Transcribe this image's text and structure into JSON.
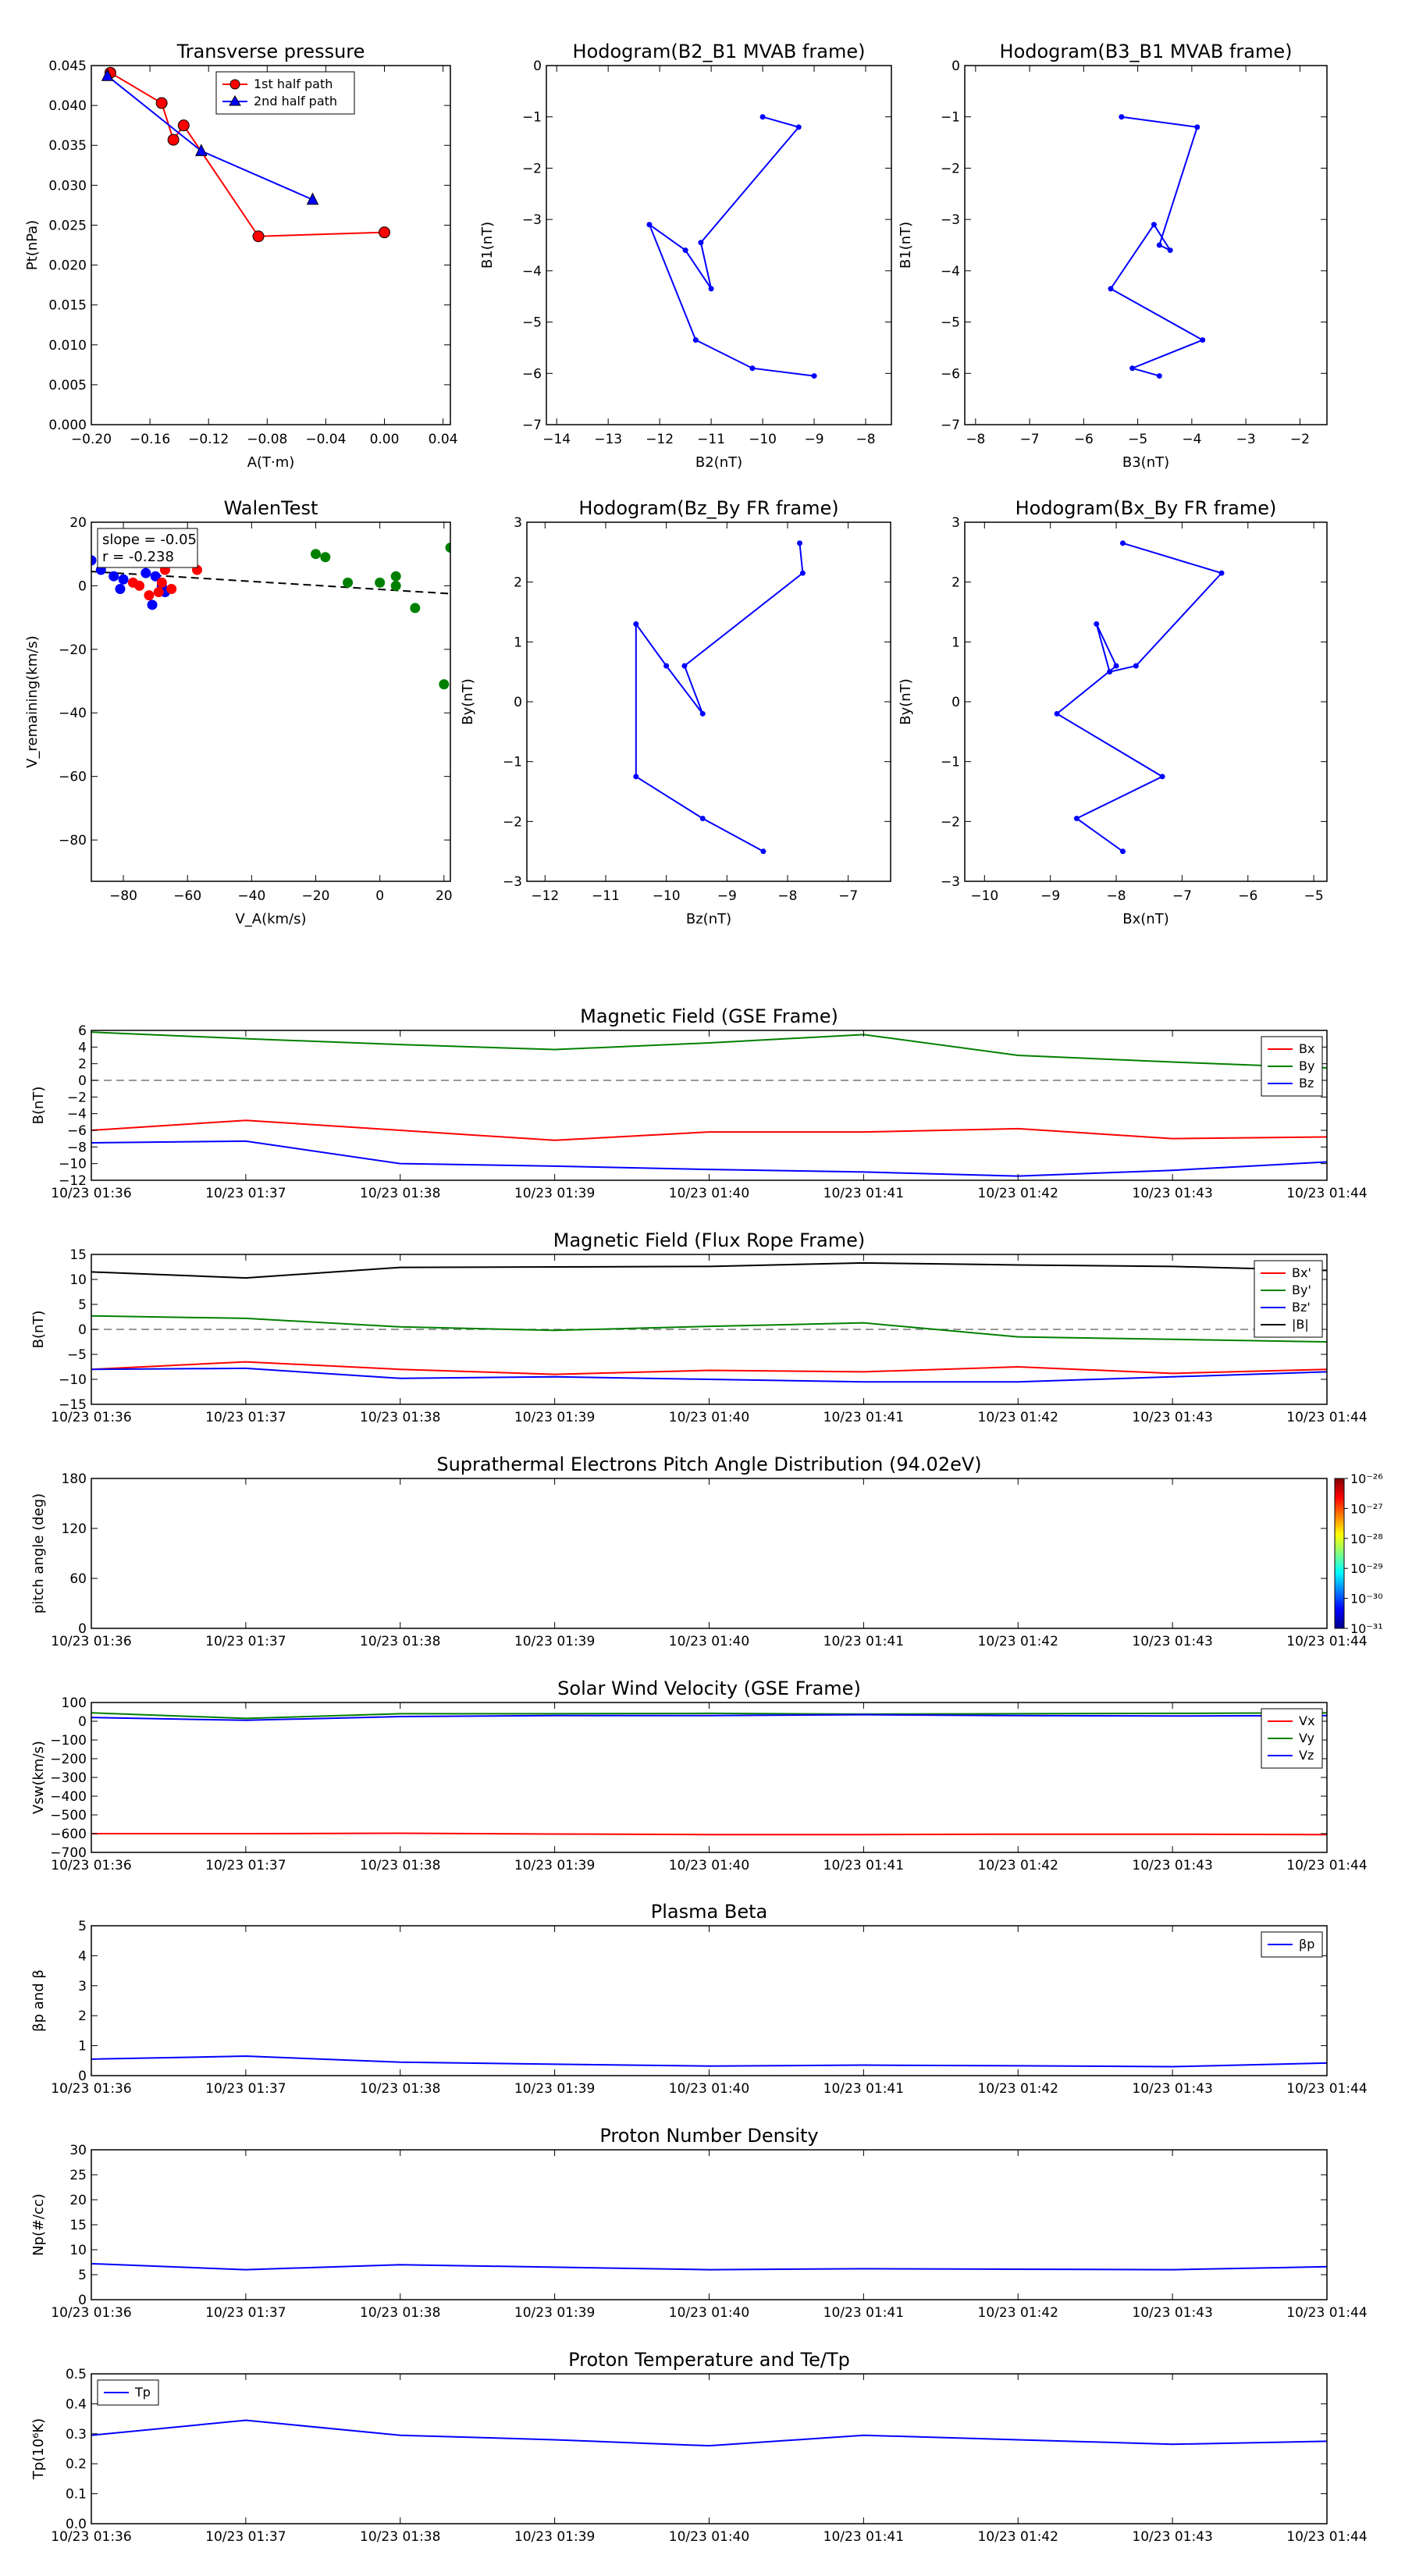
{
  "time_axis": {
    "tick_labels": [
      "10/23 01:36",
      "10/23 01:37",
      "10/23 01:38",
      "10/23 01:39",
      "10/23 01:40",
      "10/23 01:41",
      "10/23 01:42",
      "10/23 01:43",
      "10/23 01:44"
    ]
  },
  "chart_data": [
    {
      "id": "transverse-pressure",
      "type": "line",
      "title": "Transverse pressure",
      "xlabel": "A(T·m)",
      "ylabel": "Pt(nPa)",
      "xlim": [
        -0.2,
        0.045
      ],
      "ylim": [
        0,
        0.045
      ],
      "xticks": [
        -0.2,
        -0.16,
        -0.12,
        -0.08,
        -0.04,
        0.0,
        0.04
      ],
      "xtick_labels": [
        "−0.20",
        "−0.16",
        "−0.12",
        "−0.08",
        "−0.04",
        "0.00",
        "0.04"
      ],
      "yticks": [
        0,
        0.005,
        0.01,
        0.015,
        0.02,
        0.025,
        0.03,
        0.035,
        0.04,
        0.045
      ],
      "ytick_labels": [
        "0.000",
        "0.005",
        "0.010",
        "0.015",
        "0.020",
        "0.025",
        "0.030",
        "0.035",
        "0.040",
        "0.045"
      ],
      "legend": {
        "position": "top-inside",
        "entries": [
          "1st half path",
          "2nd half path"
        ]
      },
      "series": [
        {
          "name": "1st half path",
          "color": "#ff0000",
          "marker": "circle",
          "points": [
            [
              -0.187,
              0.0441
            ],
            [
              -0.152,
              0.0403
            ],
            [
              -0.144,
              0.0357
            ],
            [
              -0.137,
              0.0375
            ],
            [
              -0.086,
              0.0236
            ],
            [
              0.0,
              0.0241
            ]
          ]
        },
        {
          "name": "2nd half path",
          "color": "#0000ff",
          "marker": "triangle",
          "points": [
            [
              -0.189,
              0.0437
            ],
            [
              -0.125,
              0.0343
            ],
            [
              -0.049,
              0.0282
            ]
          ]
        }
      ]
    },
    {
      "id": "hodogram-b2-b1",
      "type": "line",
      "title": "Hodogram(B2_B1 MVAB frame)",
      "xlabel": "B2(nT)",
      "ylabel": "B1(nT)",
      "xlim": [
        -14.2,
        -7.5
      ],
      "ylim": [
        -7,
        0
      ],
      "xticks": [
        -14,
        -13,
        -12,
        -11,
        -10,
        -9,
        -8
      ],
      "xtick_labels": [
        "−14",
        "−13",
        "−12",
        "−11",
        "−10",
        "−9",
        "−8"
      ],
      "yticks": [
        -7,
        -6,
        -5,
        -4,
        -3,
        -2,
        -1,
        0
      ],
      "ytick_labels": [
        "−7",
        "−6",
        "−5",
        "−4",
        "−3",
        "−2",
        "−1",
        "0"
      ],
      "series": [
        {
          "color": "#0000ff",
          "marker": "dot",
          "points": [
            [
              -10.0,
              -1.0
            ],
            [
              -9.3,
              -1.2
            ],
            [
              -11.2,
              -3.45
            ],
            [
              -11.0,
              -4.35
            ],
            [
              -11.5,
              -3.6
            ],
            [
              -12.2,
              -3.1
            ],
            [
              -11.3,
              -5.35
            ],
            [
              -10.2,
              -5.9
            ],
            [
              -9.0,
              -6.05
            ]
          ]
        }
      ]
    },
    {
      "id": "hodogram-b3-b1",
      "type": "line",
      "title": "Hodogram(B3_B1 MVAB frame)",
      "xlabel": "B3(nT)",
      "ylabel": "B1(nT)",
      "xlim": [
        -8.2,
        -1.5
      ],
      "ylim": [
        -7,
        0
      ],
      "xticks": [
        -8,
        -7,
        -6,
        -5,
        -4,
        -3,
        -2
      ],
      "xtick_labels": [
        "−8",
        "−7",
        "−6",
        "−5",
        "−4",
        "−3",
        "−2"
      ],
      "yticks": [
        -7,
        -6,
        -5,
        -4,
        -3,
        -2,
        -1,
        0
      ],
      "ytick_labels": [
        "−7",
        "−6",
        "−5",
        "−4",
        "−3",
        "−2",
        "−1",
        "0"
      ],
      "series": [
        {
          "color": "#0000ff",
          "marker": "dot",
          "points": [
            [
              -5.3,
              -1.0
            ],
            [
              -3.9,
              -1.2
            ],
            [
              -4.6,
              -3.5
            ],
            [
              -4.4,
              -3.6
            ],
            [
              -4.7,
              -3.1
            ],
            [
              -5.5,
              -4.35
            ],
            [
              -3.8,
              -5.35
            ],
            [
              -5.1,
              -5.9
            ],
            [
              -4.6,
              -6.05
            ]
          ]
        }
      ]
    },
    {
      "id": "walen-test",
      "type": "scatter",
      "title": "WalenTest",
      "xlabel": "V_A(km/s)",
      "ylabel": "V_remaining(km/s)",
      "xlim": [
        -90,
        22
      ],
      "ylim": [
        -93,
        20
      ],
      "xticks": [
        -80,
        -60,
        -40,
        -20,
        0,
        20
      ],
      "xtick_labels": [
        "−80",
        "−60",
        "−40",
        "−20",
        "0",
        "20"
      ],
      "yticks": [
        -80,
        -60,
        -40,
        -20,
        0,
        20
      ],
      "ytick_labels": [
        "−80",
        "−60",
        "−40",
        "−20",
        "0",
        "20"
      ],
      "annotation": {
        "line1": "slope = -0.05",
        "line2": "r = -0.238"
      },
      "fit_line": {
        "points": [
          [
            -90,
            4.5
          ],
          [
            22,
            -2.5
          ]
        ],
        "style": "dashed"
      },
      "series": [
        {
          "color": "#0000ff",
          "points": [
            [
              -90,
              8
            ],
            [
              -87,
              5
            ],
            [
              -83,
              3
            ],
            [
              -80,
              2
            ],
            [
              -81,
              -1
            ],
            [
              -73,
              4
            ],
            [
              -71,
              -6
            ],
            [
              -68,
              0
            ],
            [
              -67,
              -2
            ],
            [
              -70,
              3
            ]
          ]
        },
        {
          "color": "#ff0000",
          "points": [
            [
              -77,
              1
            ],
            [
              -75,
              0
            ],
            [
              -72,
              -3
            ],
            [
              -69,
              -2
            ],
            [
              -67,
              5
            ],
            [
              -65,
              -1
            ],
            [
              -57,
              5
            ],
            [
              -68,
              1
            ]
          ]
        },
        {
          "color": "#008000",
          "points": [
            [
              -20,
              10
            ],
            [
              -17,
              9
            ],
            [
              -10,
              1
            ],
            [
              0,
              1
            ],
            [
              5,
              3
            ],
            [
              5,
              0
            ],
            [
              11,
              -7
            ],
            [
              20,
              -31
            ],
            [
              22,
              12
            ]
          ]
        }
      ]
    },
    {
      "id": "hodogram-bz-by",
      "type": "line",
      "title": "Hodogram(Bz_By FR frame)",
      "xlabel": "Bz(nT)",
      "ylabel": "By(nT)",
      "xlim": [
        -12.3,
        -6.3
      ],
      "ylim": [
        -3,
        3
      ],
      "xticks": [
        -12,
        -11,
        -10,
        -9,
        -8,
        -7
      ],
      "xtick_labels": [
        "−12",
        "−11",
        "−10",
        "−9",
        "−8",
        "−7"
      ],
      "yticks": [
        -3,
        -2,
        -1,
        0,
        1,
        2,
        3
      ],
      "ytick_labels": [
        "−3",
        "−2",
        "−1",
        "0",
        "1",
        "2",
        "3"
      ],
      "series": [
        {
          "color": "#0000ff",
          "marker": "dot",
          "points": [
            [
              -7.8,
              2.65
            ],
            [
              -7.75,
              2.15
            ],
            [
              -9.7,
              0.6
            ],
            [
              -9.4,
              -0.2
            ],
            [
              -10.0,
              0.6
            ],
            [
              -10.5,
              1.3
            ],
            [
              -10.5,
              -1.25
            ],
            [
              -9.4,
              -1.95
            ],
            [
              -8.4,
              -2.5
            ]
          ]
        }
      ]
    },
    {
      "id": "hodogram-bx-by",
      "type": "line",
      "title": "Hodogram(Bx_By FR frame)",
      "xlabel": "Bx(nT)",
      "ylabel": "By(nT)",
      "xlim": [
        -10.3,
        -4.8
      ],
      "ylim": [
        -3,
        3
      ],
      "xticks": [
        -10,
        -9,
        -8,
        -7,
        -6,
        -5
      ],
      "xtick_labels": [
        "−10",
        "−9",
        "−8",
        "−7",
        "−6",
        "−5"
      ],
      "yticks": [
        -3,
        -2,
        -1,
        0,
        1,
        2,
        3
      ],
      "ytick_labels": [
        "−3",
        "−2",
        "−1",
        "0",
        "1",
        "2",
        "3"
      ],
      "series": [
        {
          "color": "#0000ff",
          "marker": "dot",
          "points": [
            [
              -7.9,
              2.65
            ],
            [
              -6.4,
              2.15
            ],
            [
              -7.7,
              0.6
            ],
            [
              -8.1,
              0.5
            ],
            [
              -8.3,
              1.3
            ],
            [
              -8.0,
              0.6
            ],
            [
              -8.9,
              -0.2
            ],
            [
              -7.3,
              -1.25
            ],
            [
              -8.6,
              -1.95
            ],
            [
              -7.9,
              -2.5
            ]
          ]
        }
      ]
    },
    {
      "id": "mag-field-gse",
      "type": "line",
      "title": "Magnetic Field (GSE Frame)",
      "ylabel": "B(nT)",
      "ylim": [
        -12,
        6
      ],
      "yticks": [
        -12,
        -10,
        -8,
        -6,
        -4,
        -2,
        0,
        2,
        4,
        6
      ],
      "ytick_labels": [
        "−12",
        "−10",
        "−8",
        "−6",
        "−4",
        "−2",
        "0",
        "2",
        "4",
        "6"
      ],
      "zero_line": true,
      "legend": {
        "position": "top-right",
        "entries": [
          "Bx",
          "By",
          "Bz"
        ]
      },
      "series": [
        {
          "name": "Bx",
          "color": "#ff0000",
          "values": [
            -6.0,
            -4.8,
            -6.0,
            -7.2,
            -6.2,
            -6.2,
            -5.8,
            -7.0,
            -6.8
          ]
        },
        {
          "name": "By",
          "color": "#008000",
          "values": [
            5.8,
            5.0,
            4.3,
            3.7,
            4.5,
            5.5,
            3.0,
            2.2,
            1.5
          ]
        },
        {
          "name": "Bz",
          "color": "#0000ff",
          "values": [
            -7.5,
            -7.3,
            -10.0,
            -10.3,
            -10.7,
            -11.0,
            -11.5,
            -10.8,
            -9.8
          ]
        }
      ]
    },
    {
      "id": "mag-field-fr",
      "type": "line",
      "title": "Magnetic Field (Flux Rope Frame)",
      "ylabel": "B(nT)",
      "ylim": [
        -15,
        15
      ],
      "yticks": [
        -15,
        -10,
        -5,
        0,
        5,
        10,
        15
      ],
      "ytick_labels": [
        "−15",
        "−10",
        "−5",
        "0",
        "5",
        "10",
        "15"
      ],
      "zero_line": true,
      "legend": {
        "position": "top-right",
        "entries": [
          "Bx'",
          "By'",
          "Bz'",
          "|B|"
        ]
      },
      "series": [
        {
          "name": "Bx'",
          "color": "#ff0000",
          "values": [
            -8.0,
            -6.5,
            -8.0,
            -9.0,
            -8.2,
            -8.5,
            -7.5,
            -8.8,
            -8.0
          ]
        },
        {
          "name": "By'",
          "color": "#008000",
          "values": [
            2.7,
            2.2,
            0.5,
            -0.2,
            0.6,
            1.3,
            -1.5,
            -2.0,
            -2.5
          ]
        },
        {
          "name": "Bz'",
          "color": "#0000ff",
          "values": [
            -8.0,
            -7.8,
            -9.8,
            -9.5,
            -10.0,
            -10.5,
            -10.5,
            -9.5,
            -8.5
          ]
        },
        {
          "name": "|B|",
          "color": "#000000",
          "values": [
            11.5,
            10.3,
            12.4,
            12.5,
            12.6,
            13.3,
            12.9,
            12.6,
            11.8
          ]
        }
      ]
    },
    {
      "id": "pitch-angle",
      "type": "heatmap",
      "title": "Suprathermal Electrons Pitch Angle Distribution (94.02eV)",
      "ylabel": "pitch angle (deg)",
      "ylim": [
        0,
        180
      ],
      "yticks": [
        0,
        60,
        120,
        180
      ],
      "ytick_labels": [
        "0",
        "60",
        "120",
        "180"
      ],
      "colorbar": {
        "tick_labels": [
          "10⁻²⁶",
          "10⁻²⁷",
          "10⁻²⁸",
          "10⁻²⁹",
          "10⁻³⁰",
          "10⁻³¹"
        ],
        "colors": [
          "#800000",
          "#ff0000",
          "#ff8000",
          "#ffff00",
          "#80ff80",
          "#00ffff",
          "#0080ff",
          "#0000ff",
          "#00008b"
        ]
      }
    },
    {
      "id": "sw-velocity",
      "type": "line",
      "title": "Solar Wind Velocity (GSE Frame)",
      "ylabel": "Vsw(km/s)",
      "ylim": [
        -700,
        100
      ],
      "yticks": [
        -700,
        -600,
        -500,
        -400,
        -300,
        -200,
        -100,
        0,
        100
      ],
      "ytick_labels": [
        "−700",
        "−600",
        "−500",
        "−400",
        "−300",
        "−200",
        "−100",
        "0",
        "100"
      ],
      "legend": {
        "position": "top-right",
        "entries": [
          "Vx",
          "Vy",
          "Vz"
        ]
      },
      "series": [
        {
          "name": "Vx",
          "color": "#ff0000",
          "values": [
            -600,
            -600,
            -598,
            -602,
            -605,
            -605,
            -603,
            -603,
            -605
          ]
        },
        {
          "name": "Vy",
          "color": "#008000",
          "values": [
            45,
            15,
            40,
            40,
            42,
            38,
            40,
            42,
            45
          ]
        },
        {
          "name": "Vz",
          "color": "#0000ff",
          "values": [
            20,
            5,
            25,
            30,
            30,
            35,
            30,
            28,
            30
          ]
        }
      ]
    },
    {
      "id": "plasma-beta",
      "type": "line",
      "title": "Plasma Beta",
      "ylabel": "βp and β",
      "ylim": [
        0,
        5
      ],
      "yticks": [
        0,
        1,
        2,
        3,
        4,
        5
      ],
      "ytick_labels": [
        "0",
        "1",
        "2",
        "3",
        "4",
        "5"
      ],
      "legend": {
        "position": "top-right",
        "entries": [
          "βp"
        ]
      },
      "series": [
        {
          "name": "βp",
          "color": "#0000ff",
          "values": [
            0.55,
            0.65,
            0.45,
            0.38,
            0.32,
            0.35,
            0.33,
            0.3,
            0.42
          ]
        }
      ]
    },
    {
      "id": "proton-density",
      "type": "line",
      "title": "Proton Number Density",
      "ylabel": "Np(#/cc)",
      "ylim": [
        0,
        30
      ],
      "yticks": [
        0,
        5,
        10,
        15,
        20,
        25,
        30
      ],
      "ytick_labels": [
        "0",
        "5",
        "10",
        "15",
        "20",
        "25",
        "30"
      ],
      "series": [
        {
          "color": "#0000ff",
          "values": [
            7.2,
            6.0,
            7.0,
            6.5,
            6.0,
            6.2,
            6.1,
            6.0,
            6.6
          ]
        }
      ]
    },
    {
      "id": "proton-temperature",
      "type": "line",
      "title": "Proton Temperature and Te/Tp",
      "ylabel": "Tp(10⁶K)",
      "ylim": [
        0,
        0.5
      ],
      "yticks": [
        0,
        0.1,
        0.2,
        0.3,
        0.4,
        0.5
      ],
      "ytick_labels": [
        "0.0",
        "0.1",
        "0.2",
        "0.3",
        "0.4",
        "0.5"
      ],
      "legend": {
        "position": "top-left",
        "entries": [
          "Tp"
        ]
      },
      "series": [
        {
          "name": "Tp",
          "color": "#0000ff",
          "values": [
            0.295,
            0.345,
            0.295,
            0.28,
            0.26,
            0.295,
            0.28,
            0.265,
            0.275
          ]
        }
      ]
    }
  ]
}
